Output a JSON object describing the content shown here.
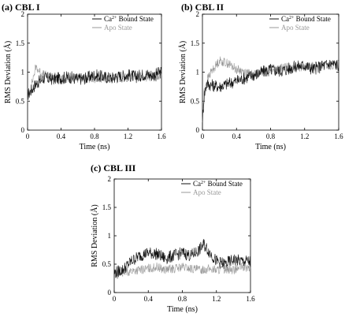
{
  "figure": {
    "panels": [
      {
        "label": "(a) CBL I"
      },
      {
        "label": "(b) CBL II"
      },
      {
        "label": "(c) CBL III"
      }
    ]
  },
  "chart_data": [
    {
      "type": "line",
      "title": "(a) CBL I",
      "xlabel": "Time (ns)",
      "ylabel": "RMS Deviation (Å)",
      "xlim": [
        0,
        1.6
      ],
      "ylim": [
        0,
        2
      ],
      "xticks": [
        "0",
        "0.4",
        "0.8",
        "1.2",
        "1.6"
      ],
      "yticks": [
        "0",
        "0.5",
        "1",
        "1.5",
        "2"
      ],
      "legend_position": "top-right",
      "series": [
        {
          "name": "Ca2+ Bound State",
          "color": "#111111",
          "x": [
            0,
            0.05,
            0.1,
            0.15,
            0.2,
            0.3,
            0.4,
            0.5,
            0.6,
            0.7,
            0.8,
            0.9,
            1.0,
            1.1,
            1.2,
            1.3,
            1.4,
            1.5,
            1.6
          ],
          "y": [
            0.6,
            0.7,
            0.8,
            0.85,
            0.9,
            0.88,
            0.9,
            0.92,
            0.88,
            0.9,
            0.95,
            0.92,
            0.9,
            0.93,
            0.95,
            0.92,
            0.97,
            0.95,
            1.0
          ]
        },
        {
          "name": "Apo State",
          "color": "#9a9a9a",
          "x": [
            0,
            0.05,
            0.1,
            0.15,
            0.2,
            0.3,
            0.4,
            0.5,
            0.6,
            0.7,
            0.8,
            0.9,
            1.0,
            1.1,
            1.2,
            1.3,
            1.4,
            1.5,
            1.6
          ],
          "y": [
            0.55,
            0.8,
            1.1,
            1.0,
            0.95,
            0.9,
            0.88,
            0.85,
            0.9,
            0.88,
            0.87,
            0.9,
            0.88,
            0.92,
            0.9,
            0.93,
            0.92,
            0.9,
            0.95
          ]
        }
      ]
    },
    {
      "type": "line",
      "title": "(b) CBL II",
      "xlabel": "Time (ns)",
      "ylabel": "RMS Deviation (Å)",
      "xlim": [
        0,
        1.6
      ],
      "ylim": [
        0,
        2
      ],
      "xticks": [
        "0",
        "0.4",
        "0.8",
        "1.2",
        "1.6"
      ],
      "yticks": [
        "0",
        "0.5",
        "1",
        "1.5",
        "2"
      ],
      "legend_position": "top-right",
      "series": [
        {
          "name": "Ca2+ Bound State",
          "color": "#111111",
          "x": [
            0,
            0.02,
            0.05,
            0.1,
            0.2,
            0.3,
            0.4,
            0.5,
            0.6,
            0.7,
            0.8,
            0.9,
            1.0,
            1.1,
            1.2,
            1.3,
            1.4,
            1.5,
            1.6
          ],
          "y": [
            0.1,
            0.6,
            0.8,
            0.78,
            0.75,
            0.8,
            0.85,
            0.9,
            0.95,
            1.0,
            1.05,
            1.02,
            1.05,
            1.1,
            1.12,
            1.05,
            1.1,
            1.15,
            1.12
          ]
        },
        {
          "name": "Apo State",
          "color": "#9a9a9a",
          "x": [
            0,
            0.02,
            0.05,
            0.1,
            0.2,
            0.3,
            0.4,
            0.5,
            0.6,
            0.7,
            0.8,
            0.9,
            1.0,
            1.1,
            1.2,
            1.3,
            1.4,
            1.5,
            1.6
          ],
          "y": [
            0.15,
            0.7,
            0.85,
            1.0,
            1.2,
            1.15,
            1.05,
            1.0,
            0.95,
            1.0,
            1.0,
            1.05,
            1.1,
            1.1,
            1.08,
            1.1,
            1.12,
            1.1,
            1.15
          ]
        }
      ]
    },
    {
      "type": "line",
      "title": "(c) CBL III",
      "xlabel": "Time (ns)",
      "ylabel": "RMS Deviation (Å)",
      "xlim": [
        0,
        1.6
      ],
      "ylim": [
        0,
        2
      ],
      "xticks": [
        "0",
        "0.4",
        "0.8",
        "1.2",
        "1.6"
      ],
      "yticks": [
        "0",
        "0.5",
        "1",
        "1.5",
        "2"
      ],
      "legend_position": "top-right",
      "series": [
        {
          "name": "Ca2+ Bound State",
          "color": "#111111",
          "x": [
            0,
            0.1,
            0.2,
            0.3,
            0.4,
            0.5,
            0.6,
            0.7,
            0.8,
            0.9,
            1.0,
            1.05,
            1.1,
            1.2,
            1.3,
            1.4,
            1.5,
            1.6
          ],
          "y": [
            0.35,
            0.4,
            0.55,
            0.65,
            0.7,
            0.68,
            0.6,
            0.65,
            0.7,
            0.65,
            0.75,
            0.85,
            0.75,
            0.55,
            0.5,
            0.58,
            0.55,
            0.55
          ]
        },
        {
          "name": "Apo State",
          "color": "#9a9a9a",
          "x": [
            0,
            0.1,
            0.2,
            0.3,
            0.4,
            0.5,
            0.6,
            0.7,
            0.8,
            0.9,
            1.0,
            1.1,
            1.2,
            1.3,
            1.4,
            1.5,
            1.6
          ],
          "y": [
            0.3,
            0.35,
            0.38,
            0.4,
            0.42,
            0.45,
            0.4,
            0.42,
            0.45,
            0.42,
            0.4,
            0.42,
            0.4,
            0.42,
            0.4,
            0.45,
            0.42
          ]
        }
      ]
    }
  ]
}
